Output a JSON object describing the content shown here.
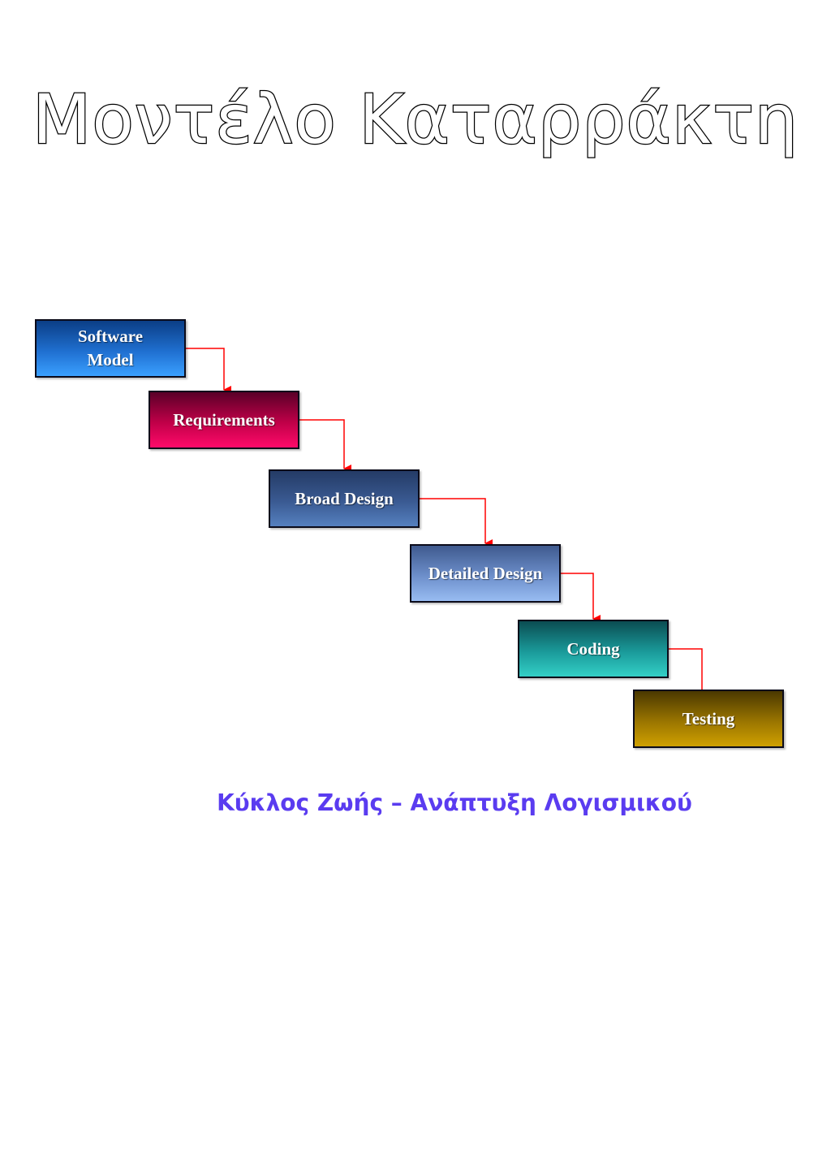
{
  "title": "Μοντέλο Καταρράκτη",
  "diagram": {
    "stages": [
      {
        "label": "Software\nModel",
        "color": "#1f6fd0"
      },
      {
        "label": "Requirements",
        "color": "#c00048"
      },
      {
        "label": "Broad Design",
        "color": "#3a5a92"
      },
      {
        "label": "Detailed Design",
        "color": "#6d8fcb"
      },
      {
        "label": "Coding",
        "color": "#1a9a9a"
      },
      {
        "label": "Testing",
        "color": "#9a7500"
      }
    ],
    "connector_color": "#ff0000"
  },
  "caption": "Κύκλος Ζωής – Ανάπτυξη Λογισμικού"
}
